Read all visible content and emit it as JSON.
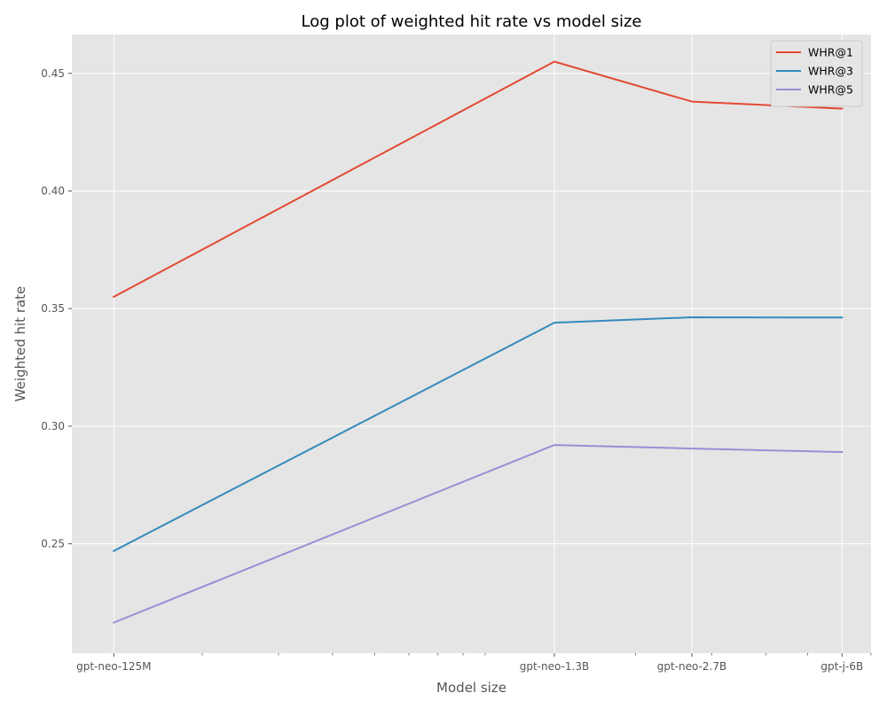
{
  "chart_data": {
    "type": "line",
    "title": "Log plot of weighted hit rate vs model size",
    "xlabel": "Model size",
    "ylabel": "Weighted hit rate",
    "x_scale": "log",
    "categories": [
      "gpt-neo-125M",
      "gpt-neo-1.3B",
      "gpt-neo-2.7B",
      "gpt-j-6B"
    ],
    "x_params_billions": [
      0.125,
      1.3,
      2.7,
      6
    ],
    "xlim": [
      0.1,
      7
    ],
    "ylim": [
      0.2035,
      0.4665
    ],
    "yticks": [
      "0.25",
      "0.30",
      "0.35",
      "0.40",
      "0.45"
    ],
    "grid": true,
    "legend_position": "top-right",
    "series": [
      {
        "name": "WHR@1",
        "color": "#E24A33",
        "values": [
          0.355,
          0.455,
          0.438,
          0.435
        ]
      },
      {
        "name": "WHR@3",
        "color": "#348ABD",
        "values": [
          0.247,
          0.344,
          0.3463,
          0.3462
        ]
      },
      {
        "name": "WHR@5",
        "color": "#988ED5",
        "values": [
          0.2165,
          0.292,
          0.2905,
          0.289
        ]
      }
    ]
  }
}
